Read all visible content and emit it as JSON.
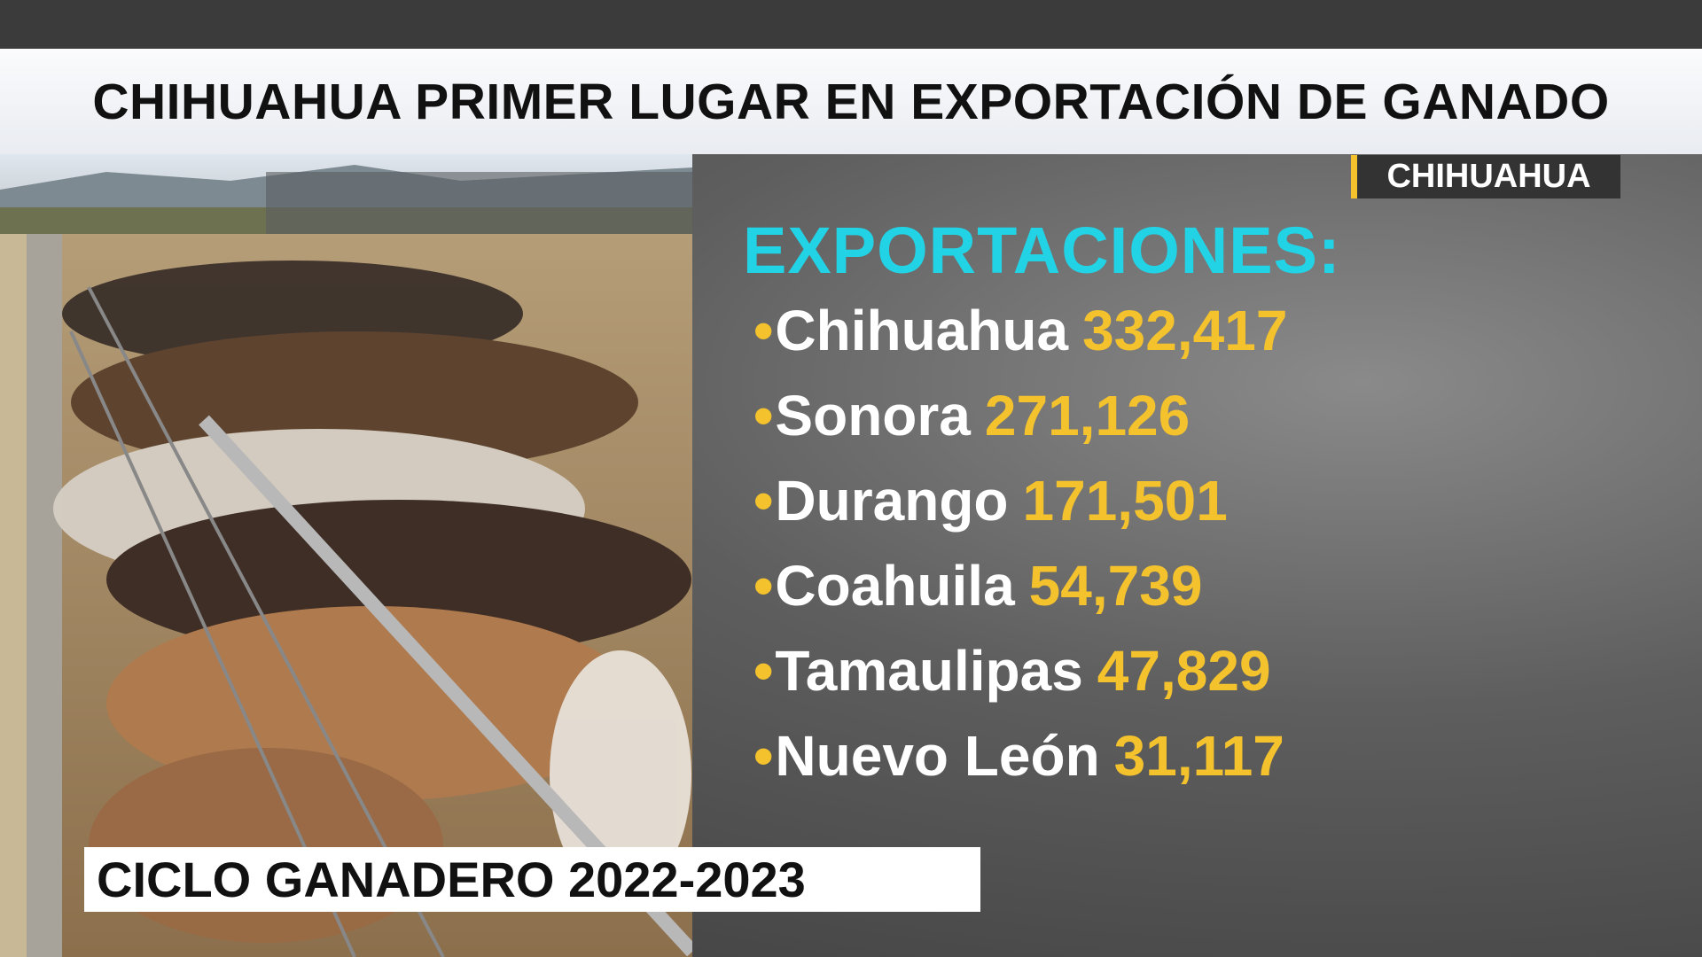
{
  "header": {
    "title": "CHIHUAHUA PRIMER LUGAR EN EXPORTACIÓN DE GANADO"
  },
  "tag": "CHIHUAHUA",
  "list": {
    "heading": "EXPORTACIONES:",
    "items": [
      {
        "name": "Chihuahua",
        "value": "332,417"
      },
      {
        "name": "Sonora",
        "value": "271,126"
      },
      {
        "name": "Durango",
        "value": "171,501"
      },
      {
        "name": "Coahuila",
        "value": "54,739"
      },
      {
        "name": "Tamaulipas",
        "value": "47,829"
      },
      {
        "name": "Nuevo León",
        "value": "31,117"
      }
    ]
  },
  "caption": "CICLO GANADERO 2022-2023"
}
